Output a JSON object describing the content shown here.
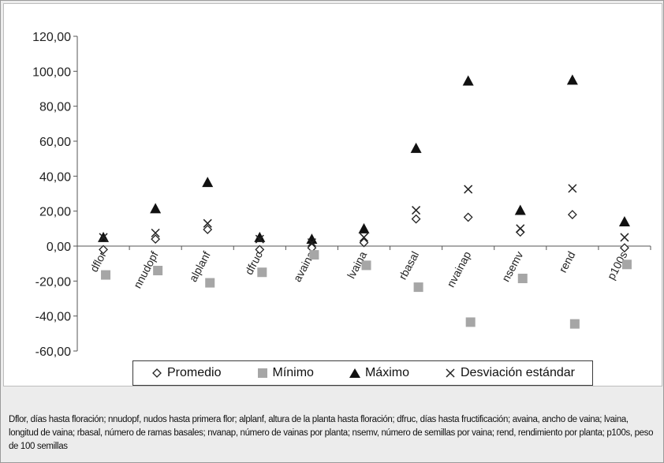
{
  "chart_data": {
    "type": "scatter",
    "categories": [
      "dflor",
      "nnudopf",
      "alplanf",
      "dfruc",
      "avaina",
      "lvaina",
      "rbasal",
      "nvainap",
      "nsemv",
      "rend",
      "p100s"
    ],
    "y_ticks": [
      "120,00",
      "100,00",
      "80,00",
      "60,00",
      "40,00",
      "20,00",
      "0,00",
      "-20,00",
      "-40,00",
      "-60,00"
    ],
    "ylim": [
      -60,
      120
    ],
    "y_tick_step": 20,
    "grid": false,
    "legend_position": "bottom",
    "series": [
      {
        "name": "Promedio",
        "marker": "diamond-open",
        "color": "#222222",
        "values": [
          -2,
          4,
          9.5,
          -2,
          -1,
          2,
          15.5,
          16.5,
          8,
          18,
          -1
        ]
      },
      {
        "name": "Mínimo",
        "marker": "square",
        "color": "#a6a6a6",
        "values": [
          -16.5,
          -14,
          -21,
          -15,
          -5,
          -11,
          -23.5,
          -43.5,
          -18.5,
          -44.5,
          -10.5
        ]
      },
      {
        "name": "Máximo",
        "marker": "triangle",
        "color": "#111111",
        "values": [
          5,
          21.5,
          36.5,
          5,
          4,
          10,
          56,
          94.5,
          20.5,
          95,
          14
        ]
      },
      {
        "name": "Desviación estándar",
        "marker": "x",
        "color": "#222222",
        "values": [
          5,
          7.5,
          13,
          4,
          2,
          5,
          20.5,
          32.5,
          10,
          33,
          5
        ]
      }
    ]
  },
  "caption": "Dflor, días hasta floración; nnudopf, nudos hasta primera flor; alplanf, altura de la planta hasta floración; dfruc, días hasta fructificación; avaina, ancho de vaina; lvaina, longitud de vaina; rbasal, número de ramas basales; nvanap, número de vainas por planta; nsemv, número de semillas por vaina; rend, rendimiento por planta; p100s, peso de 100 semillas"
}
